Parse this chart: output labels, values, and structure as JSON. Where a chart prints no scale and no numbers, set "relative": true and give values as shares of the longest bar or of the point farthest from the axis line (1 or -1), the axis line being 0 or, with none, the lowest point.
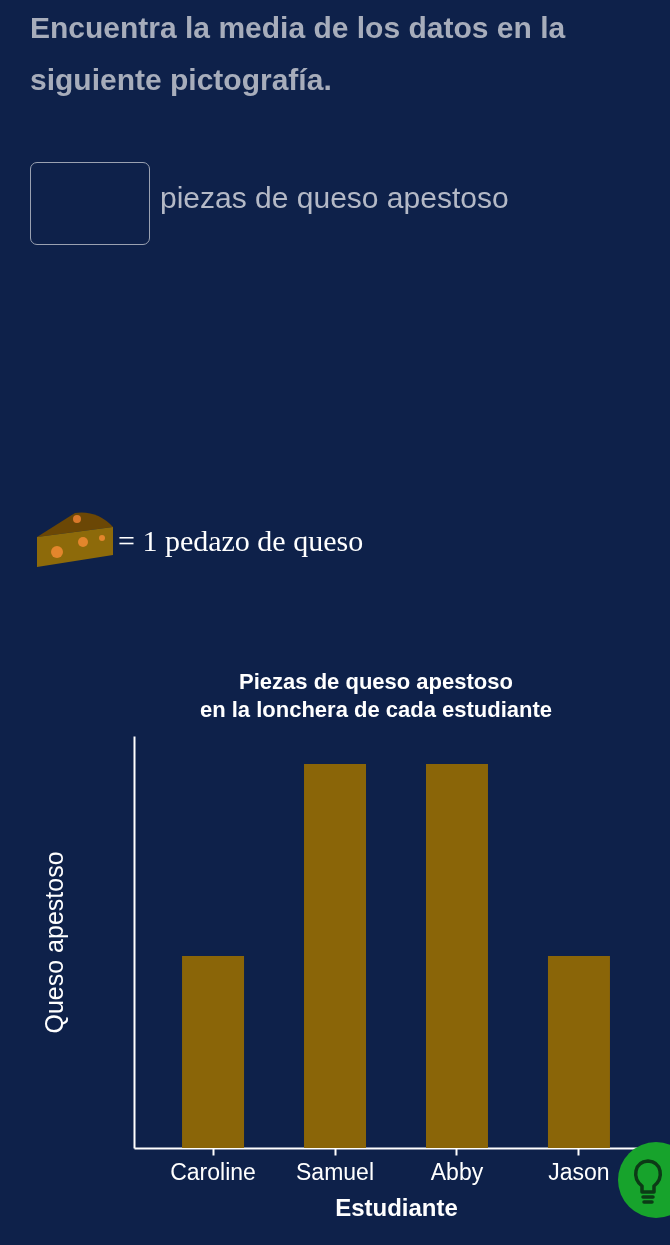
{
  "chart_data": {
    "type": "bar",
    "title": "Piezas de queso apestoso\nen la lonchera de cada estudiante",
    "xlabel": "Estudiante",
    "ylabel": "Queso apestoso",
    "categories": [
      "Caroline",
      "Samuel",
      "Abby",
      "Jason"
    ],
    "values": [
      0.5,
      1,
      1,
      0.5
    ],
    "color": "#8a6508",
    "relative": true,
    "tick_labels": "x",
    "annotations": [
      "Encuentra la media de los datos en la siguiente pictografía.",
      "piezas de queso apestoso",
      "= 1 pedazo de queso"
    ]
  }
}
